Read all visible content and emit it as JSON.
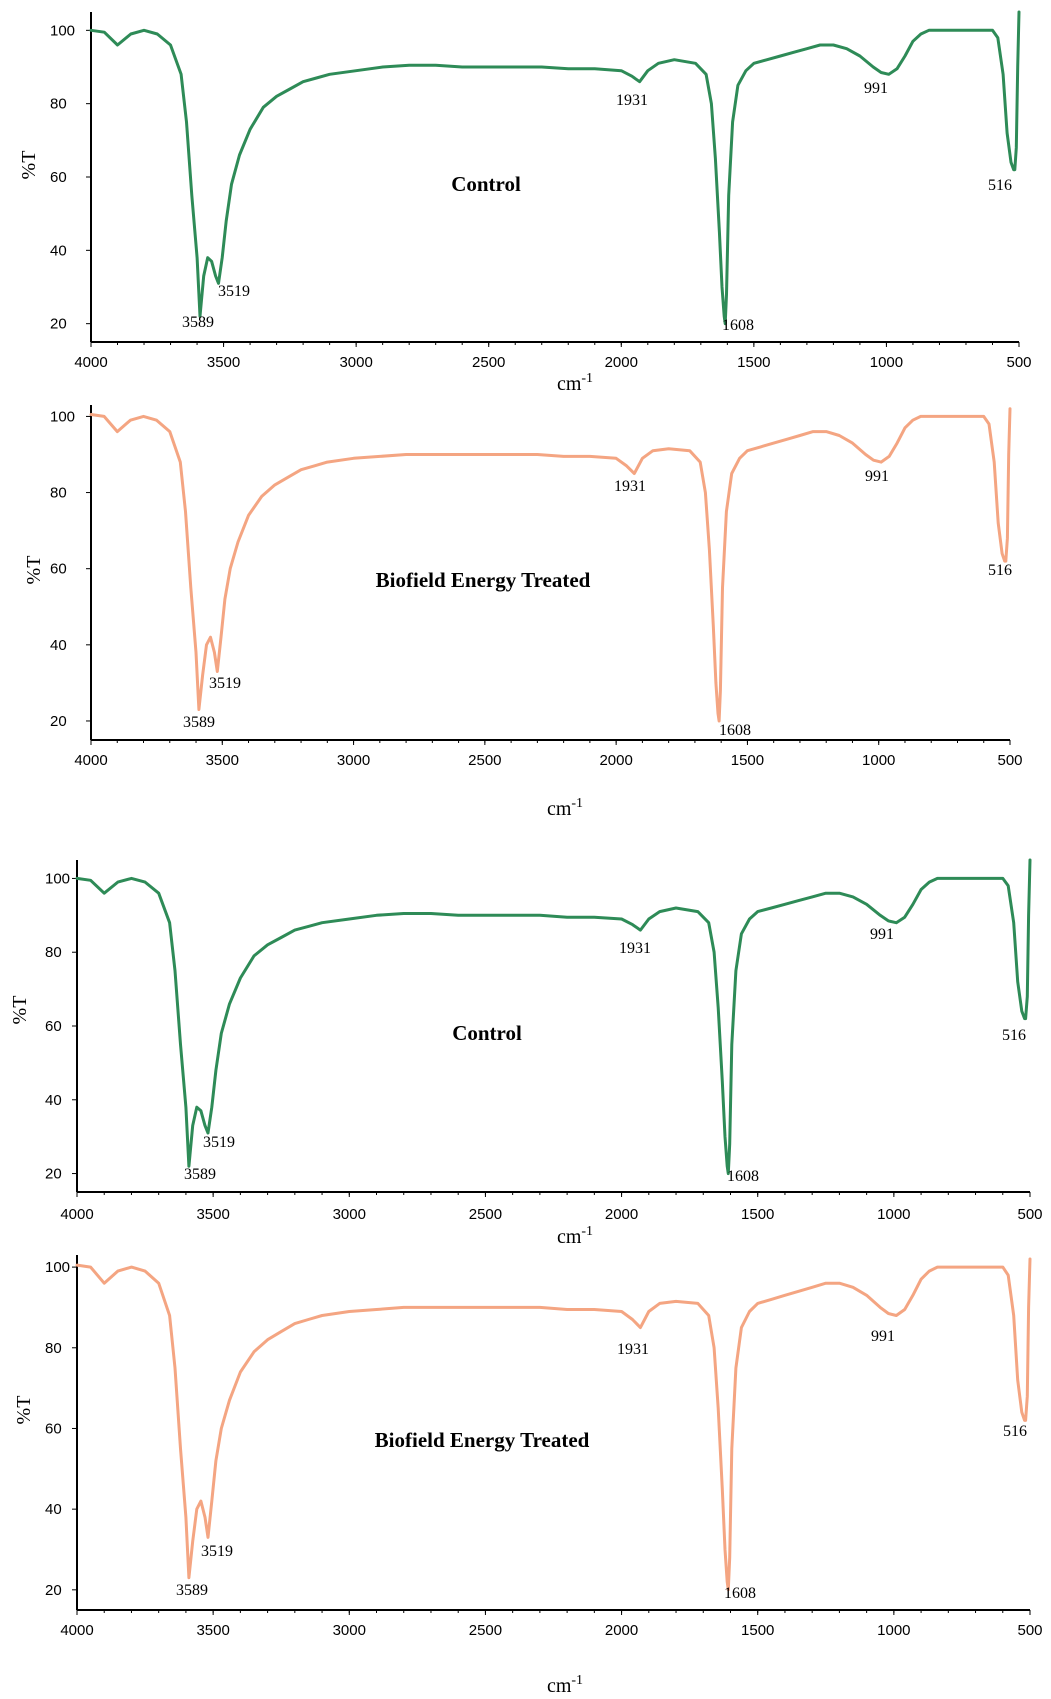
{
  "chart_data": [
    {
      "type": "line",
      "title": "Control",
      "xlabel": "cm-1",
      "ylabel": "%T",
      "xlim": [
        4000,
        500
      ],
      "ylim": [
        15,
        105
      ],
      "x_ticks": [
        "4000",
        "3500",
        "3000",
        "2500",
        "2000",
        "1500",
        "1000",
        "500"
      ],
      "y_ticks": [
        "20",
        "40",
        "60",
        "80",
        "100"
      ],
      "grid": false,
      "color": "#2e8b57",
      "series": [
        {
          "x": [
            4000,
            3950,
            3900,
            3850,
            3800,
            3750,
            3700,
            3660,
            3640,
            3620,
            3600,
            3589,
            3575,
            3560,
            3545,
            3530,
            3519,
            3505,
            3490,
            3470,
            3440,
            3400,
            3350,
            3300,
            3250,
            3200,
            3150,
            3100,
            3000,
            2900,
            2800,
            2700,
            2600,
            2500,
            2400,
            2300,
            2200,
            2100,
            2000,
            1960,
            1931,
            1900,
            1860,
            1800,
            1720,
            1680,
            1660,
            1645,
            1630,
            1620,
            1612,
            1608,
            1603,
            1595,
            1580,
            1560,
            1530,
            1500,
            1450,
            1400,
            1350,
            1300,
            1250,
            1200,
            1150,
            1100,
            1050,
            1020,
            991,
            960,
            930,
            900,
            870,
            840,
            800,
            750,
            700,
            650,
            600,
            580,
            560,
            545,
            530,
            520,
            516,
            510,
            505,
            500
          ],
          "y": [
            100,
            99.5,
            96,
            99,
            100,
            99,
            96,
            88,
            75,
            55,
            38,
            22,
            33,
            38,
            37,
            33,
            31,
            38,
            48,
            58,
            66,
            73,
            79,
            82,
            84,
            86,
            87,
            88,
            89,
            90,
            90.5,
            90.5,
            90,
            90,
            90,
            90,
            89.5,
            89.5,
            89,
            87.5,
            86,
            89,
            91,
            92,
            91,
            88,
            80,
            65,
            45,
            30,
            22,
            20,
            28,
            55,
            75,
            85,
            89,
            91,
            92,
            93,
            94,
            95,
            96,
            96,
            95,
            93,
            90,
            88.5,
            88,
            89.5,
            93,
            97,
            99,
            100,
            100,
            100,
            100,
            100,
            100,
            98,
            88,
            72,
            64,
            62,
            62,
            68,
            90,
            105
          ]
        }
      ],
      "peak_labels": [
        "3589",
        "3519",
        "1931",
        "1608",
        "991",
        "516"
      ]
    },
    {
      "type": "line",
      "title": "Biofield Energy Treated",
      "xlabel": "cm-1",
      "ylabel": "%T",
      "xlim": [
        4000,
        500
      ],
      "ylim": [
        15,
        103
      ],
      "x_ticks": [
        "4000",
        "3500",
        "3000",
        "2500",
        "2000",
        "1500",
        "1000",
        "500"
      ],
      "y_ticks": [
        "20",
        "40",
        "60",
        "80",
        "100"
      ],
      "grid": false,
      "color": "#f4a582",
      "series": [
        {
          "x": [
            4000,
            3950,
            3900,
            3850,
            3800,
            3750,
            3700,
            3660,
            3640,
            3620,
            3600,
            3589,
            3575,
            3560,
            3545,
            3530,
            3519,
            3505,
            3490,
            3470,
            3440,
            3400,
            3350,
            3300,
            3250,
            3200,
            3150,
            3100,
            3000,
            2900,
            2800,
            2700,
            2600,
            2500,
            2400,
            2300,
            2200,
            2100,
            2000,
            1960,
            1931,
            1900,
            1860,
            1800,
            1720,
            1680,
            1660,
            1645,
            1630,
            1620,
            1612,
            1608,
            1603,
            1595,
            1580,
            1560,
            1530,
            1500,
            1450,
            1400,
            1350,
            1300,
            1250,
            1200,
            1150,
            1100,
            1050,
            1020,
            991,
            960,
            930,
            900,
            870,
            840,
            800,
            750,
            700,
            650,
            600,
            580,
            560,
            545,
            530,
            520,
            516,
            510,
            505,
            500
          ],
          "y": [
            100.5,
            100,
            96,
            99,
            100,
            99,
            96,
            88,
            75,
            55,
            38,
            23,
            32,
            40,
            42,
            38,
            33,
            42,
            52,
            60,
            67,
            74,
            79,
            82,
            84,
            86,
            87,
            88,
            89,
            89.5,
            90,
            90,
            90,
            90,
            90,
            90,
            89.5,
            89.5,
            89,
            87,
            85,
            89,
            91,
            91.5,
            91,
            88,
            80,
            65,
            45,
            30,
            22,
            20,
            28,
            55,
            75,
            85,
            89,
            91,
            92,
            93,
            94,
            95,
            96,
            96,
            95,
            93,
            90,
            88.5,
            88,
            89.5,
            93,
            97,
            99,
            100,
            100,
            100,
            100,
            100,
            100,
            98,
            88,
            72,
            64,
            62,
            62,
            68,
            90,
            102
          ]
        }
      ],
      "peak_labels": [
        "3589",
        "3519",
        "1931",
        "1608",
        "991",
        "516"
      ]
    },
    {
      "type": "line",
      "title": "Control",
      "xlabel": "cm-1",
      "ylabel": "%T",
      "xlim": [
        4000,
        500
      ],
      "ylim": [
        15,
        105
      ],
      "x_ticks": [
        "4000",
        "3500",
        "3000",
        "2500",
        "2000",
        "1500",
        "1000",
        "500"
      ],
      "y_ticks": [
        "20",
        "40",
        "60",
        "80",
        "100"
      ],
      "grid": false,
      "color": "#2e8b57",
      "series": [
        {
          "x": [
            4000,
            3950,
            3900,
            3850,
            3800,
            3750,
            3700,
            3660,
            3640,
            3620,
            3600,
            3589,
            3575,
            3560,
            3545,
            3530,
            3519,
            3505,
            3490,
            3470,
            3440,
            3400,
            3350,
            3300,
            3250,
            3200,
            3150,
            3100,
            3000,
            2900,
            2800,
            2700,
            2600,
            2500,
            2400,
            2300,
            2200,
            2100,
            2000,
            1960,
            1931,
            1900,
            1860,
            1800,
            1720,
            1680,
            1660,
            1645,
            1630,
            1620,
            1612,
            1608,
            1603,
            1595,
            1580,
            1560,
            1530,
            1500,
            1450,
            1400,
            1350,
            1300,
            1250,
            1200,
            1150,
            1100,
            1050,
            1020,
            991,
            960,
            930,
            900,
            870,
            840,
            800,
            750,
            700,
            650,
            600,
            580,
            560,
            545,
            530,
            520,
            516,
            510,
            505,
            500
          ],
          "y": [
            100,
            99.5,
            96,
            99,
            100,
            99,
            96,
            88,
            75,
            55,
            38,
            22,
            33,
            38,
            37,
            33,
            31,
            38,
            48,
            58,
            66,
            73,
            79,
            82,
            84,
            86,
            87,
            88,
            89,
            90,
            90.5,
            90.5,
            90,
            90,
            90,
            90,
            89.5,
            89.5,
            89,
            87.5,
            86,
            89,
            91,
            92,
            91,
            88,
            80,
            65,
            45,
            30,
            22,
            20,
            28,
            55,
            75,
            85,
            89,
            91,
            92,
            93,
            94,
            95,
            96,
            96,
            95,
            93,
            90,
            88.5,
            88,
            89.5,
            93,
            97,
            99,
            100,
            100,
            100,
            100,
            100,
            100,
            98,
            88,
            72,
            64,
            62,
            62,
            68,
            90,
            105
          ]
        }
      ],
      "peak_labels": [
        "3589",
        "3519",
        "1931",
        "1608",
        "991",
        "516"
      ]
    },
    {
      "type": "line",
      "title": "Biofield Energy Treated",
      "xlabel": "cm-1",
      "ylabel": "%T",
      "xlim": [
        4000,
        500
      ],
      "ylim": [
        15,
        103
      ],
      "x_ticks": [
        "4000",
        "3500",
        "3000",
        "2500",
        "2000",
        "1500",
        "1000",
        "500"
      ],
      "y_ticks": [
        "20",
        "40",
        "60",
        "80",
        "100"
      ],
      "grid": false,
      "color": "#f4a582",
      "series": [
        {
          "x": [
            4000,
            3950,
            3900,
            3850,
            3800,
            3750,
            3700,
            3660,
            3640,
            3620,
            3600,
            3589,
            3575,
            3560,
            3545,
            3530,
            3519,
            3505,
            3490,
            3470,
            3440,
            3400,
            3350,
            3300,
            3250,
            3200,
            3150,
            3100,
            3000,
            2900,
            2800,
            2700,
            2600,
            2500,
            2400,
            2300,
            2200,
            2100,
            2000,
            1960,
            1931,
            1900,
            1860,
            1800,
            1720,
            1680,
            1660,
            1645,
            1630,
            1620,
            1612,
            1608,
            1603,
            1595,
            1580,
            1560,
            1530,
            1500,
            1450,
            1400,
            1350,
            1300,
            1250,
            1200,
            1150,
            1100,
            1050,
            1020,
            991,
            960,
            930,
            900,
            870,
            840,
            800,
            750,
            700,
            650,
            600,
            580,
            560,
            545,
            530,
            520,
            516,
            510,
            505,
            500
          ],
          "y": [
            100.5,
            100,
            96,
            99,
            100,
            99,
            96,
            88,
            75,
            55,
            38,
            23,
            32,
            40,
            42,
            38,
            33,
            42,
            52,
            60,
            67,
            74,
            79,
            82,
            84,
            86,
            87,
            88,
            89,
            89.5,
            90,
            90,
            90,
            90,
            90,
            90,
            89.5,
            89.5,
            89,
            87,
            85,
            89,
            91,
            91.5,
            91,
            88,
            80,
            65,
            45,
            30,
            22,
            20,
            28,
            55,
            75,
            85,
            89,
            91,
            92,
            93,
            94,
            95,
            96,
            96,
            95,
            93,
            90,
            88.5,
            88,
            89.5,
            93,
            97,
            99,
            100,
            100,
            100,
            100,
            100,
            100,
            98,
            88,
            72,
            64,
            62,
            62,
            68,
            90,
            102
          ]
        }
      ],
      "peak_labels": [
        "3589",
        "3519",
        "1931",
        "1608",
        "991",
        "516"
      ]
    }
  ]
}
